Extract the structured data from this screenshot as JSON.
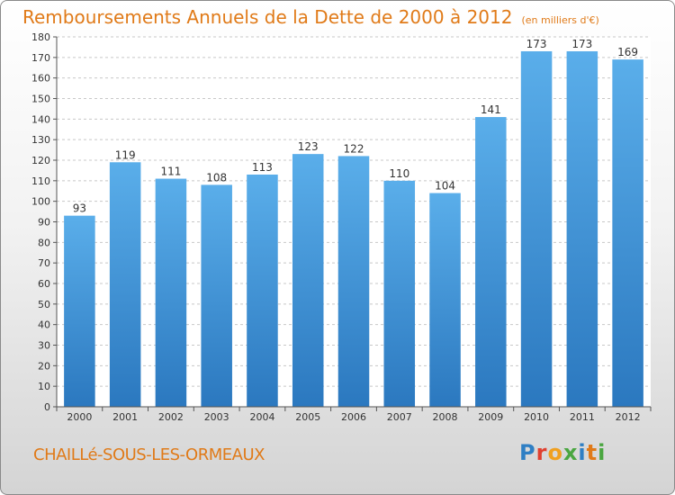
{
  "chart_data": {
    "type": "bar",
    "title": "Remboursements Annuels de la Dette de 2000 à 2012",
    "subtitle": "(en milliers d'€)",
    "categories": [
      "2000",
      "2001",
      "2002",
      "2003",
      "2004",
      "2005",
      "2006",
      "2007",
      "2008",
      "2009",
      "2010",
      "2011",
      "2012"
    ],
    "values": [
      93,
      119,
      111,
      108,
      113,
      123,
      122,
      110,
      104,
      141,
      173,
      173,
      169
    ],
    "ylim": [
      0,
      180
    ],
    "ytick_step": 10,
    "grid": true,
    "bar_color": "#3d8fd6"
  },
  "place_name": "CHAILLé-SOUS-LES-ORMEAUX",
  "brand": {
    "letters": [
      "P",
      "r",
      "o",
      "x",
      "i",
      "t",
      "i"
    ],
    "colors": [
      "#2f7fc4",
      "#e0402f",
      "#f0a020",
      "#4aa640",
      "#2f7fc4",
      "#e07a18",
      "#4aa640"
    ]
  }
}
